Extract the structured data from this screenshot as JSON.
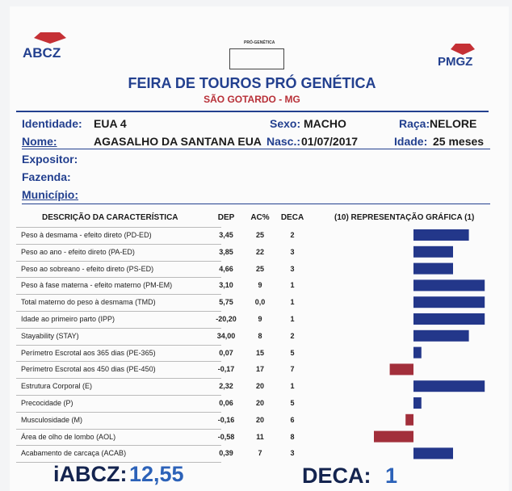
{
  "header": {
    "left_logo": "ABCZ",
    "center_logo": "PRÓ-GENÉTICA",
    "right_logo": "PMGZ",
    "title": "FEIRA DE TOUROS PRÓ GENÉTICA",
    "subtitle": "SÃO GOTARDO - MG"
  },
  "fields": {
    "identidade": {
      "label": "Identidade:",
      "value": "EUA 4"
    },
    "sexo": {
      "label": "Sexo:",
      "value": "MACHO"
    },
    "raca": {
      "label": "Raça:",
      "value": "NELORE"
    },
    "nome": {
      "label": "Nome:",
      "value": "AGASALHO DA SANTANA EUA"
    },
    "nasc": {
      "label": "Nasc.:",
      "value": "01/07/2017"
    },
    "idade": {
      "label": "Idade:",
      "value": "25 meses"
    },
    "expositor": {
      "label": "Expositor:"
    },
    "fazenda": {
      "label": "Fazenda:"
    },
    "municipio": {
      "label": "Município:"
    }
  },
  "table": {
    "columns": [
      "DESCRIÇÃO DA CARACTERÍSTICA",
      "DEP",
      "AC%",
      "DECA",
      "(10) REPRESENTAÇÃO GRÁFICA (1)"
    ],
    "rows": [
      {
        "description": "Peso à desmama - efeito direto (PD-ED)",
        "dep": "3,45",
        "ac": "25",
        "deca": 2
      },
      {
        "description": "Peso ao ano - efeito direto (PA-ED)",
        "dep": "3,85",
        "ac": "22",
        "deca": 3
      },
      {
        "description": "Peso ao sobreano - efeito direto (PS-ED)",
        "dep": "4,66",
        "ac": "25",
        "deca": 3
      },
      {
        "description": "Peso à fase materna - efeito materno (PM-EM)",
        "dep": "3,10",
        "ac": "9",
        "deca": 1
      },
      {
        "description": "Total materno do peso à desmama (TMD)",
        "dep": "5,75",
        "ac": "0,0",
        "deca": 1
      },
      {
        "description": "Idade ao primeiro parto (IPP)",
        "dep": "-20,20",
        "ac": "9",
        "deca": 1
      },
      {
        "description": "Stayability (STAY)",
        "dep": "34,00",
        "ac": "8",
        "deca": 2
      },
      {
        "description": "Perímetro Escrotal aos 365 dias (PE-365)",
        "dep": "0,07",
        "ac": "15",
        "deca": 5
      },
      {
        "description": "Perímetro Escrotal aos 450 dias (PE-450)",
        "dep": "-0,17",
        "ac": "17",
        "deca": 7
      },
      {
        "description": "Estrutura Corporal (E)",
        "dep": "2,32",
        "ac": "20",
        "deca": 1
      },
      {
        "description": "Precocidade (P)",
        "dep": "0,06",
        "ac": "20",
        "deca": 5
      },
      {
        "description": "Musculosidade (M)",
        "dep": "-0,16",
        "ac": "20",
        "deca": 6
      },
      {
        "description": "Área de olho de lombo (AOL)",
        "dep": "-0,58",
        "ac": "11",
        "deca": 8
      },
      {
        "description": "Acabamento de carcaça (ACAB)",
        "dep": "0,39",
        "ac": "7",
        "deca": 3
      }
    ]
  },
  "footer": {
    "iabcz_label": "iABCZ:",
    "iabcz_value": "12,55",
    "deca_label": "DECA:",
    "deca_value": "1"
  }
}
